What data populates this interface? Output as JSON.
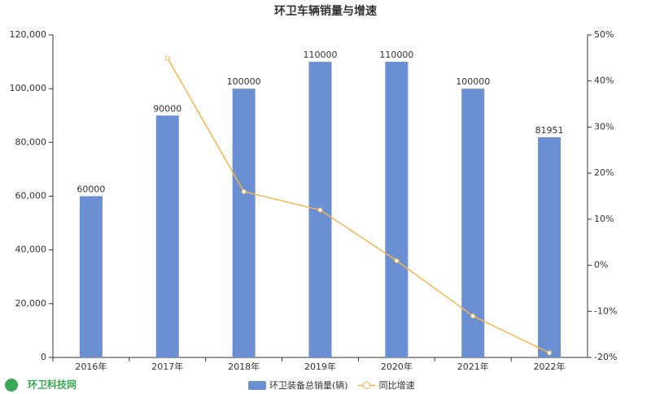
{
  "chart_data": {
    "type": "bar-line",
    "title": "环卫车辆销量与增速",
    "categories": [
      "2016年",
      "2017年",
      "2018年",
      "2019年",
      "2020年",
      "2021年",
      "2022年"
    ],
    "series": [
      {
        "name": "环卫装备总销量(辆)",
        "type": "bar",
        "color": "#6a8fd3",
        "values": [
          60000,
          90000,
          100000,
          110000,
          110000,
          100000,
          81951
        ]
      },
      {
        "name": "同比增速",
        "type": "line",
        "axis": "y2",
        "color": "#f5b54a",
        "values": [
          null,
          45,
          16,
          12,
          1,
          -11,
          -19
        ]
      }
    ],
    "ylim": [
      0,
      120000
    ],
    "yticks": [
      0,
      {
        "value": 20000,
        "label": "20,000"
      },
      {
        "value": 40000,
        "label": "40,000"
      },
      {
        "value": 60000,
        "label": "60,000"
      },
      {
        "value": 80000,
        "label": "80,000"
      },
      {
        "value": 100000,
        "label": "100,000"
      },
      {
        "value": 120000,
        "label": "120,000"
      }
    ],
    "y2lim": [
      -20,
      50
    ],
    "y2ticks": [
      {
        "value": -20,
        "label": "-20%"
      },
      {
        "value": -10,
        "label": "-10%"
      },
      {
        "value": 0,
        "label": "0%"
      },
      {
        "value": 10,
        "label": "10%"
      },
      {
        "value": 20,
        "label": "20%"
      },
      {
        "value": 30,
        "label": "30%"
      },
      {
        "value": 40,
        "label": "40%"
      },
      {
        "value": 50,
        "label": "50%"
      }
    ],
    "grid": false,
    "legend": "bottom",
    "watermark": "环卫科技网"
  }
}
